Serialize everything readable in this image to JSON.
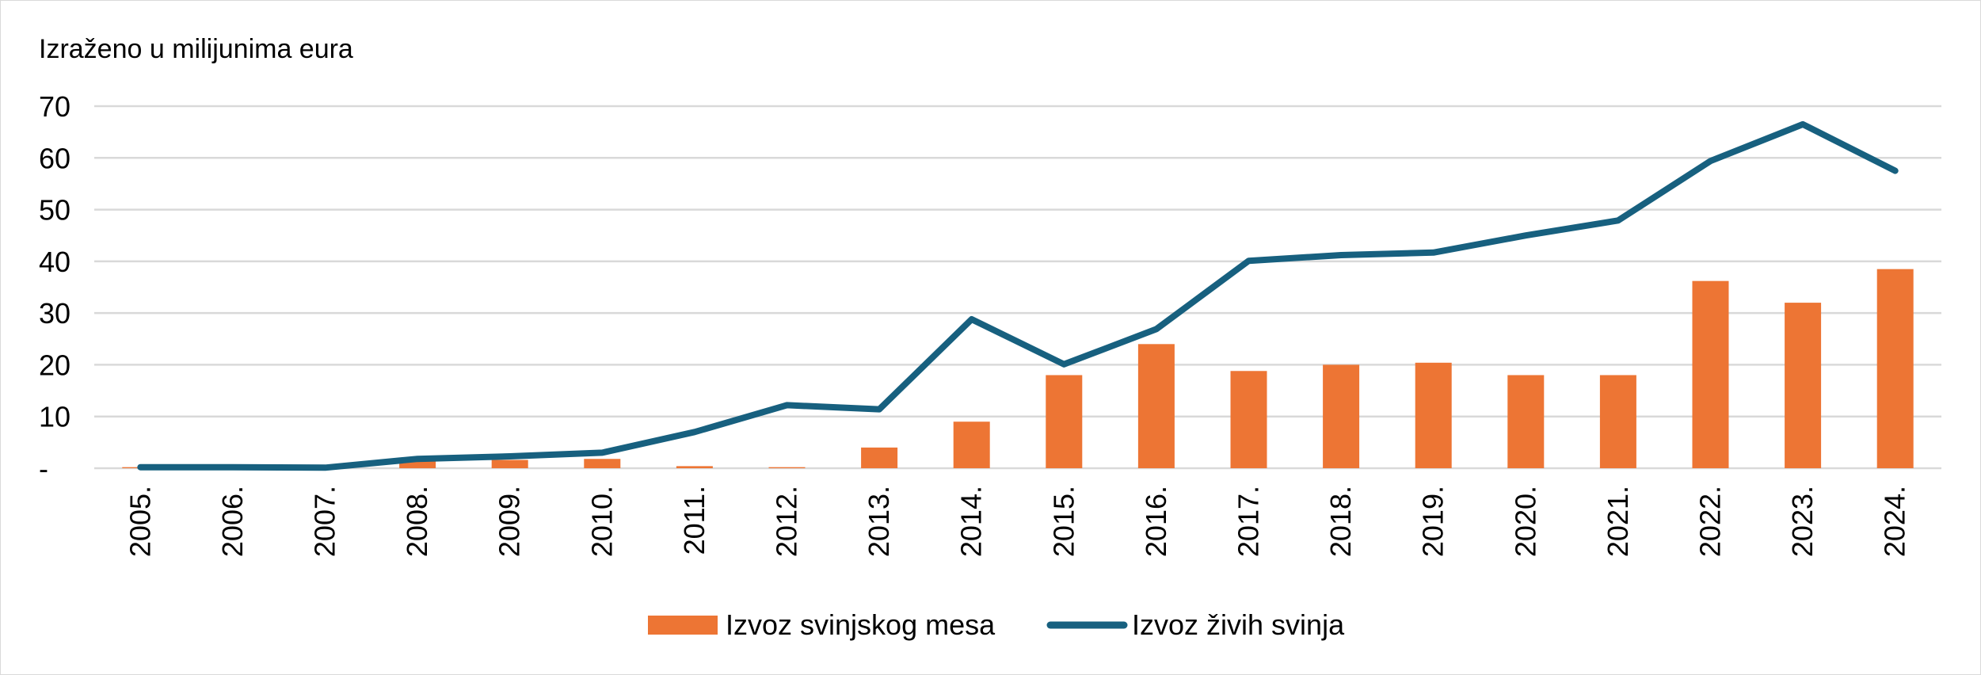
{
  "chart_data": {
    "type": "bar+line",
    "unit_label": "Izraženo u milijunima eura",
    "categories": [
      "2005.",
      "2006.",
      "2007.",
      "2008.",
      "2009.",
      "2010.",
      "2011.",
      "2012.",
      "2013.",
      "2014.",
      "2015.",
      "2016.",
      "2017.",
      "2018.",
      "2019.",
      "2020.",
      "2021.",
      "2022.",
      "2023.",
      "2024."
    ],
    "y_ticks": [
      "-",
      "10",
      "20",
      "30",
      "40",
      "50",
      "60",
      "70"
    ],
    "ylim": [
      0,
      70
    ],
    "grid": true,
    "legend_position": "bottom",
    "series": [
      {
        "name": "Izvoz svinjskog mesa",
        "type": "bar",
        "color": "#ED7534",
        "values": [
          0.2,
          0.6,
          0.0,
          1.8,
          1.6,
          1.8,
          0.4,
          0.2,
          4.0,
          9.0,
          18.0,
          24.0,
          18.8,
          20.0,
          20.4,
          18.0,
          18.0,
          36.2,
          32.0,
          38.5
        ]
      },
      {
        "name": "Izvoz živih svinja",
        "type": "line",
        "color": "#17607F",
        "values": [
          0.2,
          0.2,
          0.1,
          1.8,
          2.3,
          3.0,
          7.0,
          12.2,
          11.4,
          28.8,
          20.1,
          26.9,
          40.1,
          41.2,
          41.7,
          45.0,
          47.9,
          59.4,
          66.5,
          57.5
        ]
      }
    ]
  }
}
